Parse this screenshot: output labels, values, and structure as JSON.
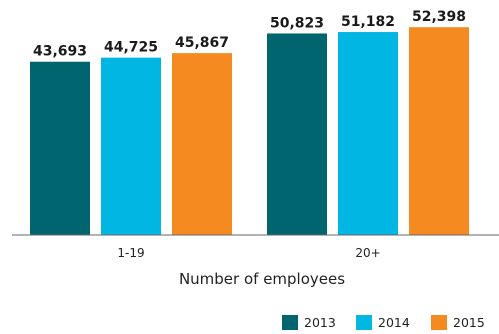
{
  "chart_data": {
    "type": "bar",
    "title": "",
    "xlabel": "Number of employees",
    "ylabel": "",
    "categories": [
      "1-19",
      "20+"
    ],
    "series": [
      {
        "name": "2013",
        "color": "#00656f",
        "values": [
          43693,
          50823
        ],
        "labels": [
          "43,693",
          "50,823"
        ]
      },
      {
        "name": "2014",
        "color": "#00b6e2",
        "values": [
          44725,
          51182
        ],
        "labels": [
          "44,725",
          "51,182"
        ]
      },
      {
        "name": "2015",
        "color": "#f58b20",
        "values": [
          45867,
          52398
        ],
        "labels": [
          "45,867",
          "52,398"
        ]
      }
    ],
    "ylim": [
      0,
      58000
    ],
    "grid": false,
    "legend": "bottom-right"
  }
}
